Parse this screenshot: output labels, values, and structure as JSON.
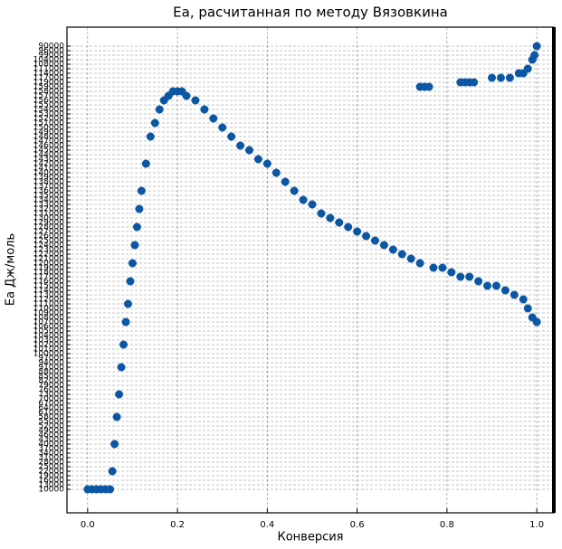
{
  "chart_data": {
    "type": "scatter",
    "title": "Ea, расчитанная по методу Вязовкина",
    "xlabel": "Конверсия",
    "ylabel": "Ea Дж/моль",
    "xlim": [
      -0.046,
      1.038
    ],
    "xticks": [
      {
        "value": 0,
        "label": "0.0"
      },
      0.2,
      0.4,
      0.6,
      0.8,
      {
        "value": 1,
        "label": "1.0"
      }
    ],
    "ylim": [
      -5.2,
      102.2
    ],
    "yticks": [
      {
        "value": 0,
        "label": "10000"
      },
      {
        "value": 1,
        "label": "13000"
      },
      {
        "value": 2,
        "label": "16000"
      },
      {
        "value": 3,
        "label": "19000"
      },
      {
        "value": 4,
        "label": "22000"
      },
      {
        "value": 5,
        "label": "25000"
      },
      {
        "value": 6,
        "label": "28000"
      },
      {
        "value": 7,
        "label": "31000"
      },
      {
        "value": 8,
        "label": "34000"
      },
      {
        "value": 9,
        "label": "37000"
      },
      {
        "value": 10,
        "label": "40000"
      },
      {
        "value": 11,
        "label": "43000"
      },
      {
        "value": 12,
        "label": "46000"
      },
      {
        "value": 13,
        "label": "49000"
      },
      {
        "value": 14,
        "label": "52000"
      },
      {
        "value": 15,
        "label": "55000"
      },
      {
        "value": 16,
        "label": "58000"
      },
      {
        "value": 17,
        "label": "61000"
      },
      {
        "value": 18,
        "label": "64000"
      },
      {
        "value": 19,
        "label": "67000"
      },
      {
        "value": 20,
        "label": "70000"
      },
      {
        "value": 21,
        "label": "73000"
      },
      {
        "value": 22,
        "label": "76000"
      },
      {
        "value": 23,
        "label": "79000"
      },
      {
        "value": 24,
        "label": "82000"
      },
      {
        "value": 25,
        "label": "85000"
      },
      {
        "value": 26,
        "label": "88000"
      },
      {
        "value": 27,
        "label": "91000"
      },
      {
        "value": 28,
        "label": "94000"
      },
      {
        "value": 29,
        "label": "97000"
      },
      {
        "value": 30,
        "label": "100000"
      },
      {
        "value": 31,
        "label": "101000"
      },
      {
        "value": 32,
        "label": "102000"
      },
      {
        "value": 33,
        "label": "103000"
      },
      {
        "value": 34,
        "label": "104000"
      },
      {
        "value": 35,
        "label": "105000"
      },
      {
        "value": 36,
        "label": "106000"
      },
      {
        "value": 37,
        "label": "107000"
      },
      {
        "value": 38,
        "label": "108000"
      },
      {
        "value": 39,
        "label": "109000"
      },
      {
        "value": 40,
        "label": "110000"
      },
      {
        "value": 41,
        "label": "111000"
      },
      {
        "value": 42,
        "label": "112000"
      },
      {
        "value": 43,
        "label": "113000"
      },
      {
        "value": 44,
        "label": "114000"
      },
      {
        "value": 45,
        "label": "115000"
      },
      {
        "value": 46,
        "label": "116000"
      },
      {
        "value": 47,
        "label": "117000"
      },
      {
        "value": 48,
        "label": "118000"
      },
      {
        "value": 49,
        "label": "119000"
      },
      {
        "value": 50,
        "label": "120000"
      },
      {
        "value": 51,
        "label": "121000"
      },
      {
        "value": 52,
        "label": "122000"
      },
      {
        "value": 53,
        "label": "123000"
      },
      {
        "value": 54,
        "label": "124000"
      },
      {
        "value": 55,
        "label": "125000"
      },
      {
        "value": 56,
        "label": "126000"
      },
      {
        "value": 57,
        "label": "127000"
      },
      {
        "value": 58,
        "label": "128000"
      },
      {
        "value": 59,
        "label": "129000"
      },
      {
        "value": 60,
        "label": "130000"
      },
      {
        "value": 61,
        "label": "131000"
      },
      {
        "value": 62,
        "label": "132000"
      },
      {
        "value": 63,
        "label": "133000"
      },
      {
        "value": 64,
        "label": "134000"
      },
      {
        "value": 65,
        "label": "135000"
      },
      {
        "value": 66,
        "label": "136000"
      },
      {
        "value": 67,
        "label": "137000"
      },
      {
        "value": 68,
        "label": "138000"
      },
      {
        "value": 69,
        "label": "139000"
      },
      {
        "value": 70,
        "label": "140000"
      },
      {
        "value": 71,
        "label": "141000"
      },
      {
        "value": 72,
        "label": "142000"
      },
      {
        "value": 73,
        "label": "143000"
      },
      {
        "value": 74,
        "label": "144000"
      },
      {
        "value": 75,
        "label": "145000"
      },
      {
        "value": 76,
        "label": "146000"
      },
      {
        "value": 77,
        "label": "147000"
      },
      {
        "value": 78,
        "label": "148000"
      },
      {
        "value": 79,
        "label": "149000"
      },
      {
        "value": 80,
        "label": "150000"
      },
      {
        "value": 81,
        "label": "151000"
      },
      {
        "value": 82,
        "label": "152000"
      },
      {
        "value": 83,
        "label": "153000"
      },
      {
        "value": 84,
        "label": "154000"
      },
      {
        "value": 85,
        "label": "155000"
      },
      {
        "value": 86,
        "label": "156000"
      },
      {
        "value": 87,
        "label": "157000"
      },
      {
        "value": 88,
        "label": "158000"
      },
      {
        "value": 89,
        "label": "159000"
      },
      {
        "value": 90,
        "label": "119000"
      },
      {
        "value": 91,
        "label": "117000"
      },
      {
        "value": 92,
        "label": "114000"
      },
      {
        "value": 93,
        "label": "111000"
      },
      {
        "value": 94,
        "label": "108000"
      },
      {
        "value": 95,
        "label": "104000"
      },
      {
        "value": 96,
        "label": "99000"
      },
      {
        "value": 97,
        "label": "96000"
      },
      {
        "value": 98,
        "label": "90000"
      }
    ],
    "grid": true,
    "series": [
      {
        "color": "#0b57a4",
        "x": [
          0,
          0.01,
          0.02,
          0.03,
          0.04,
          0.05,
          0.055,
          0.06,
          0.065,
          0.07,
          0.075,
          0.08,
          0.085,
          0.09,
          0.095,
          0.1,
          0.105,
          0.11,
          0.115,
          0.12,
          0.13,
          0.14,
          0.15,
          0.16,
          0.17,
          0.18,
          0.19,
          0.2,
          0.21,
          0.22,
          0.24,
          0.26,
          0.28,
          0.3,
          0.32,
          0.34,
          0.36,
          0.38,
          0.4,
          0.42,
          0.44,
          0.46,
          0.48,
          0.5,
          0.52,
          0.54,
          0.56,
          0.58,
          0.6,
          0.62,
          0.64,
          0.66,
          0.68,
          0.7,
          0.72,
          0.74,
          0.77,
          0.79,
          0.81,
          0.83,
          0.85,
          0.87,
          0.89,
          0.91,
          0.93,
          0.95,
          0.97,
          0.98,
          0.99,
          1.0
        ],
        "values": [
          0,
          0,
          0,
          0,
          0,
          0,
          4,
          10,
          16,
          21,
          27,
          32,
          37,
          41,
          46,
          50,
          54,
          58,
          62,
          66,
          72,
          78,
          81,
          84,
          86,
          87,
          88,
          88,
          88,
          87,
          86,
          84,
          82,
          80,
          78,
          76,
          75,
          73,
          72,
          70,
          68,
          66,
          64,
          63,
          61,
          60,
          59,
          58,
          57,
          56,
          55,
          54,
          53,
          52,
          51,
          50,
          49,
          49,
          48,
          47,
          47,
          46,
          45,
          45,
          44,
          43,
          42,
          40,
          38,
          37
        ]
      },
      {
        "color": "#0b57a4",
        "x": [
          0.74,
          0.75,
          0.76,
          0.83,
          0.84,
          0.85,
          0.86,
          0.9,
          0.92,
          0.94,
          0.96,
          0.97,
          0.98,
          0.99,
          0.995,
          1.0
        ],
        "values": [
          89,
          89,
          89,
          90,
          90,
          90,
          90,
          91,
          91,
          91,
          92,
          92,
          93,
          95,
          96,
          98
        ]
      }
    ]
  }
}
